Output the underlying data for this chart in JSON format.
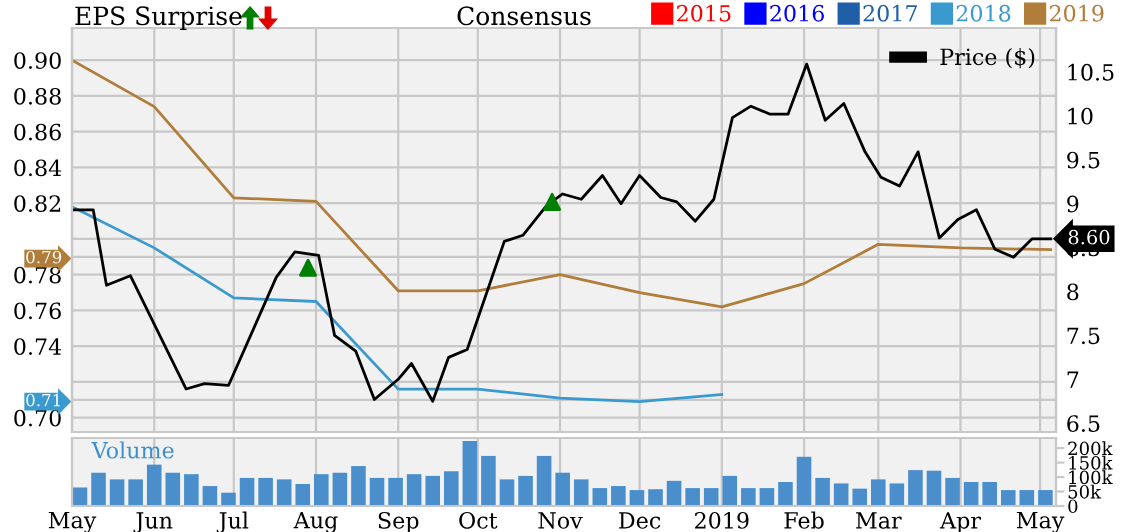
{
  "chart_data": [
    {
      "type": "line",
      "legend_title": "Consensus",
      "annotations": [
        "EPS Surprise"
      ],
      "xlim": [
        "2018-05-01",
        "2019-05-07"
      ],
      "xticks": [
        {
          "value": "2018-05-01",
          "label": null
        },
        {
          "value": "2018-06-01",
          "label": null
        },
        {
          "value": "2018-07-01",
          "label": null
        },
        {
          "value": "2018-08-01",
          "label": null
        },
        {
          "value": "2018-09-01",
          "label": null
        },
        {
          "value": "2018-10-01",
          "label": null
        },
        {
          "value": "2018-11-01",
          "label": null
        },
        {
          "value": "2018-12-01",
          "label": null
        },
        {
          "value": "2019-01-01",
          "label": null
        },
        {
          "value": "2019-02-01",
          "label": null
        },
        {
          "value": "2019-03-01",
          "label": null
        },
        {
          "value": "2019-04-01",
          "label": null
        },
        {
          "value": "2019-05-01",
          "label": null
        }
      ],
      "ylim": [
        0.692,
        0.918
      ],
      "yticks": [
        {
          "value": 0.7,
          "label": "0.70"
        },
        {
          "value": 0.71,
          "label": "0.71"
        },
        {
          "value": 0.72,
          "label": null
        },
        {
          "value": 0.74,
          "label": "0.74"
        },
        {
          "value": 0.76,
          "label": "0.76"
        },
        {
          "value": 0.78,
          "label": "0.78"
        },
        {
          "value": 0.79,
          "label": "0.79"
        },
        {
          "value": 0.8,
          "label": null
        },
        {
          "value": 0.82,
          "label": "0.82"
        },
        {
          "value": 0.84,
          "label": "0.84"
        },
        {
          "value": 0.86,
          "label": "0.86"
        },
        {
          "value": 0.88,
          "label": "0.88"
        },
        {
          "value": 0.9,
          "label": "0.90"
        }
      ],
      "y2lim": [
        6.4,
        11.0
      ],
      "y2ticks": [
        6.5,
        7,
        7.5,
        8,
        8.5,
        9,
        9.5,
        10,
        10.5
      ],
      "grid": true,
      "legend": "top right",
      "tick_labels": "y",
      "series": [
        {
          "name": "2015",
          "color": "#ff0000"
        },
        {
          "name": "2016",
          "color": "#0000ff"
        },
        {
          "name": "2017",
          "color": "#1f5fa8"
        },
        {
          "name": "2018",
          "color": "#3a9ad0",
          "x": [
            "2018-05-01",
            "2018-06-01",
            "2018-07-01",
            "2018-08-01",
            "2018-09-01",
            "2018-10-01",
            "2018-11-01",
            "2018-12-01",
            "2019-01-01"
          ],
          "values": [
            0.818,
            0.795,
            0.767,
            0.765,
            0.716,
            0.716,
            0.711,
            0.709,
            0.713
          ]
        },
        {
          "name": "2019",
          "color": "#b07d3a",
          "x": [
            "2018-05-01",
            "2018-06-01",
            "2018-07-01",
            "2018-08-01",
            "2018-09-01",
            "2018-10-01",
            "2018-11-01",
            "2018-12-01",
            "2019-01-01",
            "2019-02-01",
            "2019-03-01",
            "2019-04-01",
            "2019-05-05"
          ],
          "values": [
            0.9,
            0.874,
            0.823,
            0.821,
            0.771,
            0.771,
            0.78,
            0.77,
            0.762,
            0.775,
            0.797,
            0.795,
            0.794
          ]
        },
        {
          "name": "Price ($)",
          "color": "#000000",
          "axis": "y2",
          "x": [
            "2018-05-01",
            "2018-05-09",
            "2018-05-14",
            "2018-05-23",
            "2018-06-13",
            "2018-06-20",
            "2018-06-29",
            "2018-07-17",
            "2018-07-24",
            "2018-08-02",
            "2018-08-08",
            "2018-08-16",
            "2018-08-23",
            "2018-09-01",
            "2018-09-06",
            "2018-09-14",
            "2018-09-20",
            "2018-09-27",
            "2018-10-11",
            "2018-10-18",
            "2018-10-27",
            "2018-11-02",
            "2018-11-09",
            "2018-11-17",
            "2018-11-24",
            "2018-12-01",
            "2018-12-09",
            "2018-12-15",
            "2018-12-22",
            "2018-12-29",
            "2019-01-05",
            "2019-01-12",
            "2019-01-19",
            "2019-01-26",
            "2019-02-02",
            "2019-02-09",
            "2019-02-16",
            "2019-02-24",
            "2019-03-02",
            "2019-03-09",
            "2019-03-16",
            "2019-03-24",
            "2019-03-31",
            "2019-04-07",
            "2019-04-14",
            "2019-04-21",
            "2019-04-28",
            "2019-05-05"
          ],
          "values": [
            8.93,
            8.93,
            8.07,
            8.18,
            6.89,
            6.95,
            6.93,
            8.16,
            8.45,
            8.41,
            7.5,
            7.32,
            6.77,
            7.0,
            7.18,
            6.75,
            7.25,
            7.34,
            8.57,
            8.64,
            8.98,
            9.11,
            9.05,
            9.32,
            9.0,
            9.32,
            9.07,
            9.02,
            8.8,
            9.05,
            9.98,
            10.11,
            10.02,
            10.02,
            10.59,
            9.95,
            10.14,
            9.59,
            9.3,
            9.2,
            9.59,
            8.61,
            8.82,
            8.93,
            8.48,
            8.39,
            8.6,
            8.6
          ],
          "value_labels": [
            null,
            null,
            null,
            null,
            null,
            null,
            null,
            null,
            null,
            null,
            null,
            null,
            null,
            null,
            null,
            null,
            null,
            null,
            null,
            null,
            null,
            null,
            null,
            null,
            null,
            null,
            null,
            null,
            null,
            null,
            null,
            null,
            null,
            null,
            null,
            null,
            null,
            null,
            null,
            null,
            null,
            null,
            null,
            null,
            null,
            null,
            null,
            "8.60"
          ]
        },
        {
          "type": "scatter",
          "marker": "triangle",
          "color": "#008000",
          "axis": "y2",
          "x": [
            "2018-07-29",
            "2018-10-29"
          ],
          "values": [
            8.27,
            9.02
          ]
        }
      ]
    },
    {
      "type": "bar",
      "title": "Volume",
      "color": "#4a8fcc",
      "grid": "x",
      "xlim": [
        "2018-05-01",
        "2019-05-07"
      ],
      "xticks": [
        {
          "value": "2018-05-01",
          "label": "May"
        },
        {
          "value": "2018-06-01",
          "label": "Jun"
        },
        {
          "value": "2018-07-01",
          "label": "Jul"
        },
        {
          "value": "2018-08-01",
          "label": "Aug"
        },
        {
          "value": "2018-09-01",
          "label": "Sep"
        },
        {
          "value": "2018-10-01",
          "label": "Oct"
        },
        {
          "value": "2018-11-01",
          "label": "Nov"
        },
        {
          "value": "2018-12-01",
          "label": "Dec"
        },
        {
          "value": "2019-01-01",
          "label": "2019"
        },
        {
          "value": "2019-02-01",
          "label": "Feb"
        },
        {
          "value": "2019-03-01",
          "label": "Mar"
        },
        {
          "value": "2019-04-01",
          "label": "Apr"
        },
        {
          "value": "2019-05-01",
          "label": "May"
        }
      ],
      "ylim": [
        0,
        235000
      ],
      "yticks": [
        {
          "value": 0,
          "label": "0"
        },
        {
          "value": 50000,
          "label": "50k"
        },
        {
          "value": 100000,
          "label": "100k"
        },
        {
          "value": 150000,
          "label": "150k"
        },
        {
          "value": 200000,
          "label": "200k"
        }
      ],
      "x": [
        "2018-05-04",
        "2018-05-11",
        "2018-05-18",
        "2018-05-25",
        "2018-06-01",
        "2018-06-08",
        "2018-06-15",
        "2018-06-22",
        "2018-06-29",
        "2018-07-06",
        "2018-07-13",
        "2018-07-20",
        "2018-07-27",
        "2018-08-03",
        "2018-08-10",
        "2018-08-17",
        "2018-08-24",
        "2018-08-31",
        "2018-09-07",
        "2018-09-14",
        "2018-09-21",
        "2018-09-28",
        "2018-10-05",
        "2018-10-12",
        "2018-10-19",
        "2018-10-26",
        "2018-11-02",
        "2018-11-09",
        "2018-11-16",
        "2018-11-23",
        "2018-11-30",
        "2018-12-07",
        "2018-12-14",
        "2018-12-21",
        "2018-12-28",
        "2019-01-04",
        "2019-01-11",
        "2019-01-18",
        "2019-01-25",
        "2019-02-01",
        "2019-02-08",
        "2019-02-15",
        "2019-02-22",
        "2019-03-01",
        "2019-03-08",
        "2019-03-15",
        "2019-03-22",
        "2019-03-29",
        "2019-04-05",
        "2019-04-12",
        "2019-04-19",
        "2019-04-26",
        "2019-05-03"
      ],
      "values": [
        64000,
        115000,
        92000,
        92000,
        143000,
        115000,
        110000,
        69000,
        46000,
        97000,
        97000,
        92000,
        76000,
        110000,
        115000,
        138000,
        97000,
        97000,
        110000,
        104000,
        120000,
        225000,
        173000,
        92000,
        104000,
        173000,
        115000,
        92000,
        62000,
        69000,
        55000,
        58000,
        87000,
        62000,
        62000,
        104000,
        62000,
        62000,
        83000,
        170000,
        97000,
        78000,
        60000,
        92000,
        78000,
        124000,
        122000,
        97000,
        83000,
        83000,
        55000,
        55000,
        55000
      ]
    }
  ]
}
